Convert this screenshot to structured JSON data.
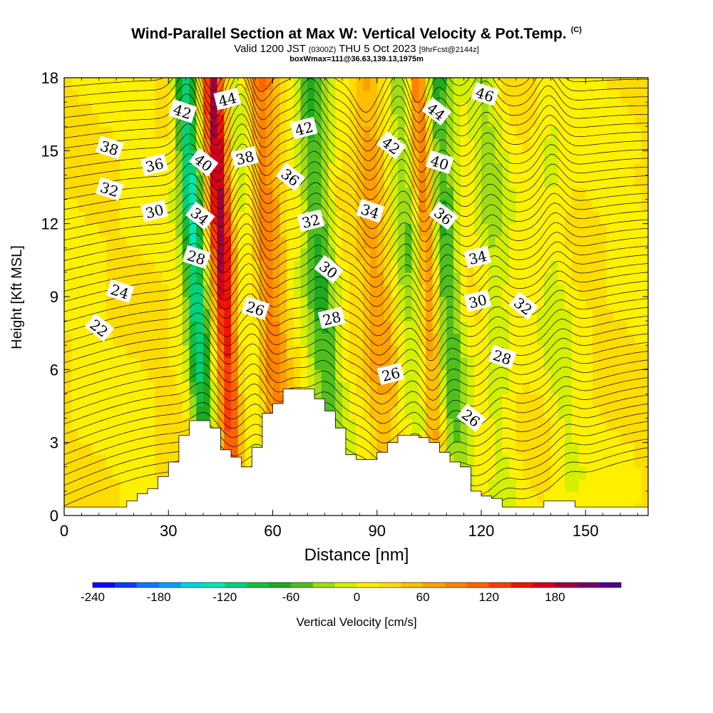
{
  "title": "Wind-Parallel Section at Max W: Vertical Velocity & Pot.Temp.",
  "title_tag": "(C)",
  "subtitle": {
    "main_a": "Valid 1200 JST",
    "small_a": "(0300Z)",
    "main_b": "THU 5 Oct 2023",
    "small_b": "[9hrFcst@2144z]"
  },
  "subtitle2": "boxWmax=111@36.63,139.13,1975m",
  "chart_data": {
    "type": "heatmap",
    "xlabel": "Distance [nm]",
    "ylabel": "Height [Kft MSL]",
    "xlim": [
      0,
      168
    ],
    "ylim": [
      0,
      18
    ],
    "xticks": [
      0,
      30,
      60,
      90,
      120,
      150
    ],
    "yticks": [
      0,
      3,
      6,
      9,
      12,
      15,
      18
    ],
    "colorbar": {
      "label": "Vertical Velocity [cm/s]",
      "range": [
        -240,
        220
      ],
      "step": 20,
      "ticks": [
        -240,
        -180,
        -120,
        -60,
        0,
        60,
        120,
        180
      ],
      "colors": [
        "#1400ff",
        "#0a3cff",
        "#0a78ff",
        "#00a0ff",
        "#00d2e6",
        "#00e6b4",
        "#00d278",
        "#14be3c",
        "#1eaa1e",
        "#50be1e",
        "#a0dc14",
        "#d2f000",
        "#fff000",
        "#ffdc00",
        "#ffbe00",
        "#ffa000",
        "#ff8200",
        "#ff6400",
        "#ff3c00",
        "#f01400",
        "#d2001e",
        "#a0003c",
        "#780064",
        "#500096"
      ]
    },
    "velocity_features": [
      {
        "x": 38,
        "v": -150
      },
      {
        "x": 46,
        "v": 170
      },
      {
        "x": 54,
        "v": -40
      },
      {
        "x": 59,
        "v": 90
      },
      {
        "x": 74,
        "v": -85
      },
      {
        "x": 90,
        "v": 55
      },
      {
        "x": 100,
        "v": -55
      },
      {
        "x": 105,
        "v": 110
      },
      {
        "x": 110,
        "v": -90
      },
      {
        "x": 124,
        "v": -40
      },
      {
        "x": 142,
        "v": -25
      }
    ],
    "terrain_top_kft": [
      [
        0,
        0.35
      ],
      [
        3,
        0.35
      ],
      [
        6,
        0.35
      ],
      [
        9,
        0.35
      ],
      [
        12,
        0.35
      ],
      [
        15,
        0.35
      ],
      [
        18,
        0.6
      ],
      [
        21,
        0.9
      ],
      [
        24,
        1.1
      ],
      [
        27,
        1.6
      ],
      [
        30,
        2.2
      ],
      [
        33,
        3.3
      ],
      [
        36,
        3.9
      ],
      [
        39,
        3.9
      ],
      [
        42,
        3.6
      ],
      [
        45,
        2.7
      ],
      [
        48,
        2.4
      ],
      [
        51,
        2.0
      ],
      [
        54,
        2.8
      ],
      [
        57,
        4.2
      ],
      [
        60,
        4.6
      ],
      [
        63,
        5.2
      ],
      [
        66,
        5.2
      ],
      [
        69,
        5.2
      ],
      [
        72,
        4.8
      ],
      [
        75,
        4.3
      ],
      [
        78,
        3.6
      ],
      [
        81,
        2.5
      ],
      [
        84,
        2.3
      ],
      [
        87,
        2.3
      ],
      [
        90,
        2.6
      ],
      [
        93,
        3.0
      ],
      [
        96,
        3.3
      ],
      [
        99,
        3.3
      ],
      [
        102,
        3.2
      ],
      [
        105,
        3.0
      ],
      [
        108,
        2.6
      ],
      [
        111,
        2.2
      ],
      [
        114,
        2.0
      ],
      [
        117,
        1.0
      ],
      [
        120,
        0.8
      ],
      [
        123,
        0.7
      ],
      [
        126,
        0.35
      ],
      [
        129,
        0.35
      ],
      [
        132,
        0.35
      ],
      [
        135,
        0.35
      ],
      [
        138,
        0.6
      ],
      [
        141,
        0.6
      ],
      [
        144,
        0.6
      ],
      [
        147,
        0.35
      ],
      [
        150,
        0.35
      ],
      [
        153,
        0.35
      ],
      [
        156,
        0.35
      ],
      [
        159,
        0.35
      ],
      [
        162,
        0.35
      ],
      [
        165,
        0.35
      ],
      [
        168,
        0.35
      ]
    ],
    "theta_contour_labels": [
      {
        "text": "46",
        "x": 121,
        "y": 17.3
      },
      {
        "text": "44",
        "x": 47,
        "y": 17.1
      },
      {
        "text": "44",
        "x": 107,
        "y": 16.6
      },
      {
        "text": "42",
        "x": 34,
        "y": 16.6
      },
      {
        "text": "42",
        "x": 69,
        "y": 15.9
      },
      {
        "text": "42",
        "x": 94,
        "y": 15.2
      },
      {
        "text": "38",
        "x": 13,
        "y": 15.1
      },
      {
        "text": "38",
        "x": 52,
        "y": 14.7
      },
      {
        "text": "40",
        "x": 40,
        "y": 14.5
      },
      {
        "text": "40",
        "x": 108,
        "y": 14.5
      },
      {
        "text": "36",
        "x": 26,
        "y": 14.4
      },
      {
        "text": "36",
        "x": 65,
        "y": 13.9
      },
      {
        "text": "32",
        "x": 13,
        "y": 13.4
      },
      {
        "text": "30",
        "x": 26,
        "y": 12.5
      },
      {
        "text": "34",
        "x": 39,
        "y": 12.3
      },
      {
        "text": "34",
        "x": 88,
        "y": 12.5
      },
      {
        "text": "32",
        "x": 71,
        "y": 12.1
      },
      {
        "text": "36",
        "x": 109,
        "y": 12.3
      },
      {
        "text": "28",
        "x": 38,
        "y": 10.6
      },
      {
        "text": "34",
        "x": 119,
        "y": 10.6
      },
      {
        "text": "30",
        "x": 76,
        "y": 10.1
      },
      {
        "text": "24",
        "x": 16,
        "y": 9.2
      },
      {
        "text": "30",
        "x": 119,
        "y": 8.8
      },
      {
        "text": "32",
        "x": 132,
        "y": 8.6
      },
      {
        "text": "26",
        "x": 55,
        "y": 8.5
      },
      {
        "text": "28",
        "x": 77,
        "y": 8.1
      },
      {
        "text": "22",
        "x": 10,
        "y": 7.7
      },
      {
        "text": "28",
        "x": 126,
        "y": 6.5
      },
      {
        "text": "26",
        "x": 94,
        "y": 5.8
      },
      {
        "text": "26",
        "x": 117,
        "y": 4.0
      }
    ]
  }
}
